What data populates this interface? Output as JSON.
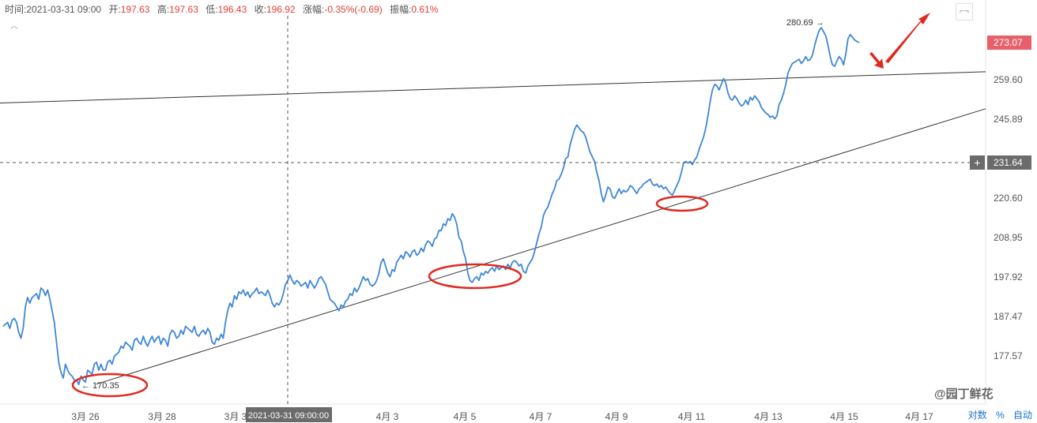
{
  "info_bar": {
    "time_label": "时间:",
    "time_value": "2021-03-31 09:00",
    "open_label": "开:",
    "open_value": "197.63",
    "high_label": "高:",
    "high_value": "197.63",
    "low_label": "低:",
    "low_value": "196.43",
    "close_label": "收:",
    "close_value": "196.92",
    "change_label": "涨幅:",
    "change_value": "-0.35%(-0.69)",
    "amplitude_label": "振幅:",
    "amplitude_value": "0.61%"
  },
  "collapse_glyph": "︿",
  "fullscreen_glyph": "⌐¬",
  "axis_controls": {
    "log_label": "对数",
    "percent_label": "%",
    "auto_label": "自动"
  },
  "watermark": "@园丁鲜花",
  "crosshair": {
    "x_label": "2021-03-31 09:00:00",
    "y_label": "231.64",
    "plus_glyph": "+"
  },
  "colors": {
    "line": "#3f87d6",
    "trendline": "#333333",
    "annotation": "#e02a20",
    "last_price_bg": "#e8606a",
    "crosshair_bg": "#6b6b6b"
  },
  "chart_data": {
    "type": "line",
    "x_tick_labels": [
      "3月 26",
      "3月 28",
      "3月 3",
      "4月 3",
      "4月 5",
      "4月 7",
      "4月 9",
      "4月 11",
      "4月 13",
      "4月 15",
      "4月 17"
    ],
    "y_tick_labels": [
      "177.57",
      "187.47",
      "197.92",
      "208.95",
      "220.60",
      "231.64",
      "245.89",
      "259.60",
      "273.07"
    ],
    "ylim": [
      170,
      283
    ],
    "last_price": "273.07",
    "high_marker": "280.69",
    "low_marker": "170.35",
    "series": [
      {
        "values": [
          185.0,
          185.5,
          186.0,
          184.5,
          186.5,
          187.0,
          186.0,
          183.5,
          182.0,
          184.5,
          190.0,
          192.5,
          191.0,
          192.5,
          193.0,
          193.5,
          192.0,
          195.0,
          194.5,
          193.0,
          194.5,
          192.0,
          189.0,
          186.0,
          181.0,
          176.0,
          173.5,
          172.0,
          175.5,
          174.0,
          173.0,
          172.5,
          171.5,
          171.5,
          170.4,
          172.5,
          171.5,
          171.0,
          174.0,
          173.5,
          173.0,
          175.5,
          176.0,
          174.0,
          175.5,
          174.0,
          174.0,
          176.0,
          176.5,
          175.5,
          177.5,
          178.0,
          178.5,
          180.0,
          179.5,
          181.0,
          180.5,
          180.0,
          179.0,
          181.5,
          182.0,
          181.0,
          180.5,
          182.5,
          181.0,
          180.0,
          181.5,
          182.5,
          181.0,
          182.0,
          182.5,
          180.5,
          182.0,
          181.5,
          180.0,
          183.0,
          184.0,
          183.5,
          182.0,
          182.5,
          184.0,
          183.0,
          185.0,
          184.5,
          184.0,
          183.5,
          185.0,
          183.0,
          182.5,
          183.5,
          184.0,
          183.0,
          184.5,
          183.5,
          181.0,
          180.5,
          182.0,
          181.5,
          183.0,
          182.0,
          186.0,
          189.0,
          191.0,
          190.0,
          193.0,
          192.0,
          194.0,
          193.5,
          194.5,
          193.0,
          194.0,
          192.5,
          193.5,
          194.0,
          195.0,
          193.5,
          194.0,
          193.5,
          193.0,
          194.5,
          193.0,
          191.0,
          190.0,
          191.0,
          190.5,
          191.5,
          193.5,
          196.0,
          197.0,
          198.5,
          197.0,
          196.0,
          197.0,
          196.5,
          195.5,
          196.0,
          196.5,
          195.0,
          197.0,
          196.0,
          195.0,
          196.0,
          197.5,
          198.0,
          197.0,
          196.0,
          194.0,
          192.0,
          191.5,
          191.0,
          190.0,
          189.0,
          190.5,
          190.0,
          191.5,
          192.0,
          193.5,
          193.0,
          195.0,
          194.0,
          195.0,
          196.5,
          198.0,
          197.0,
          197.5,
          196.0,
          195.5,
          196.0,
          197.0,
          199.0,
          202.0,
          203.0,
          201.0,
          199.0,
          198.0,
          200.0,
          199.5,
          202.0,
          203.0,
          204.0,
          203.0,
          205.0,
          204.5,
          203.5,
          205.0,
          205.5,
          204.0,
          204.5,
          206.0,
          205.0,
          207.0,
          208.0,
          207.5,
          206.5,
          208.5,
          209.0,
          211.0,
          211.0,
          213.0,
          212.5,
          214.5,
          214.0,
          216.0,
          215.0,
          213.0,
          209.0,
          208.0,
          205.0,
          203.0,
          199.0,
          197.0,
          196.5,
          197.5,
          198.0,
          197.0,
          199.0,
          198.5,
          199.5,
          199.0,
          200.0,
          200.5,
          199.5,
          201.0,
          200.0,
          200.5,
          201.0,
          200.0,
          201.5,
          200.5,
          202.0,
          202.5,
          202.0,
          201.0,
          201.5,
          199.5,
          199.0,
          201.0,
          202.0,
          203.0,
          205.0,
          207.5,
          210.0,
          212.0,
          215.5,
          217.0,
          218.0,
          220.0,
          222.0,
          223.5,
          226.0,
          226.5,
          228.0,
          230.0,
          233.0,
          233.5,
          237.5,
          240.0,
          242.5,
          244.0,
          243.0,
          242.0,
          241.5,
          240.0,
          237.5,
          235.0,
          233.5,
          232.0,
          228.5,
          226.0,
          222.0,
          219.5,
          221.5,
          224.0,
          223.5,
          221.0,
          220.5,
          222.0,
          223.5,
          222.0,
          223.0,
          222.5,
          223.0,
          224.5,
          224.0,
          223.0,
          222.0,
          223.5,
          224.0,
          225.0,
          225.5,
          226.0,
          226.5,
          225.0,
          224.5,
          225.0,
          224.0,
          224.5,
          223.5,
          224.0,
          223.0,
          222.0,
          221.5,
          223.0,
          224.5,
          226.0,
          228.5,
          231.5,
          232.0,
          231.5,
          232.0,
          231.0,
          232.5,
          233.5,
          236.0,
          238.0,
          240.0,
          243.0,
          247.0,
          252.0,
          256.0,
          258.0,
          257.5,
          256.0,
          258.0,
          260.0,
          258.5,
          255.0,
          253.0,
          252.5,
          254.0,
          253.0,
          251.5,
          250.5,
          251.0,
          252.5,
          251.0,
          253.5,
          252.5,
          254.0,
          253.0,
          252.0,
          250.0,
          249.0,
          248.0,
          247.5,
          246.5,
          247.0,
          246.0,
          247.0,
          251.0,
          252.5,
          255.0,
          258.0,
          262.0,
          264.0,
          265.5,
          266.0,
          266.5,
          267.0,
          265.5,
          266.5,
          268.0,
          266.5,
          267.0,
          268.5,
          272.0,
          275.0,
          277.5,
          278.5,
          277.0,
          275.5,
          272.0,
          268.0,
          265.0,
          264.5,
          266.5,
          268.0,
          267.0,
          265.0,
          269.0,
          274.5,
          276.0,
          275.0,
          274.0,
          273.5,
          273.07
        ],
        "x_start_day": 24.0,
        "x_step_days": 0.0665
      }
    ],
    "trendlines": [
      {
        "from": {
          "day": 24.0,
          "value": 251.5
        },
        "to": {
          "day": 41.4,
          "value": 262.5
        }
      },
      {
        "from": {
          "day": 25.7,
          "value": 170.5
        },
        "to": {
          "day": 41.4,
          "value": 249.5
        }
      }
    ]
  }
}
